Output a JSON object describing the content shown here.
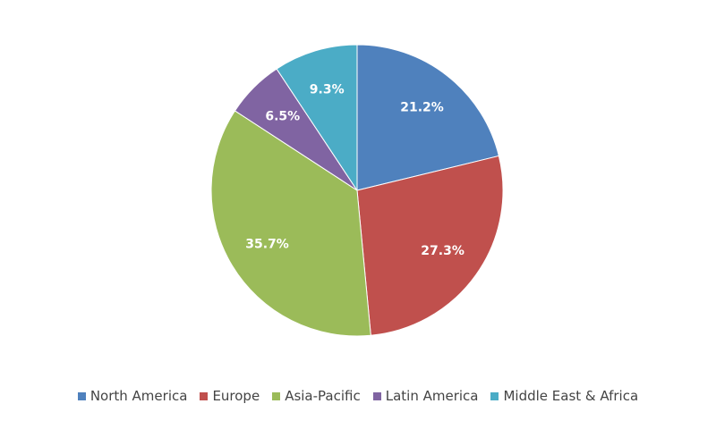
{
  "chart_data": {
    "type": "pie",
    "categories": [
      "North America",
      "Europe",
      "Asia-Pacific",
      "Latin America",
      "Middle East & Africa"
    ],
    "values": [
      21.2,
      27.3,
      35.7,
      6.5,
      9.3
    ],
    "value_labels": [
      "21.2%",
      "27.3%",
      "35.7%",
      "6.5%",
      "9.3%"
    ],
    "colors": [
      "#4f81bd",
      "#c0504d",
      "#9bbb59",
      "#8064a2",
      "#4bacc6"
    ],
    "legend": "bottom"
  }
}
